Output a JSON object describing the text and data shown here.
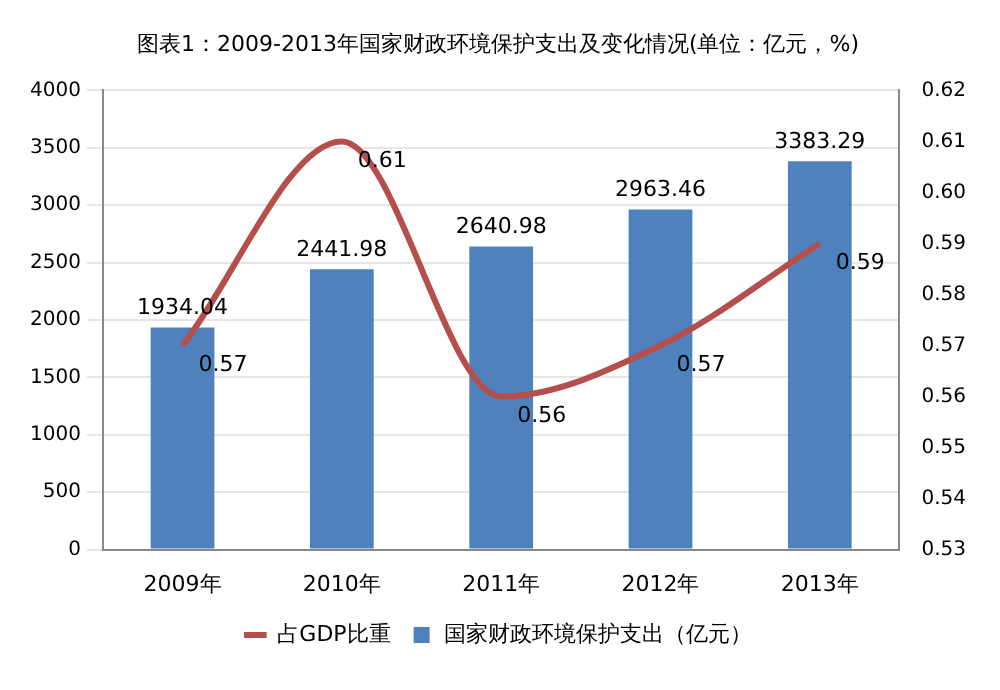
{
  "chart_data": {
    "type": "bar",
    "title": "图表1：2009-2013年国家财政环境保护支出及变化情况(单位：亿元，%)",
    "categories": [
      "2009年",
      "2010年",
      "2011年",
      "2012年",
      "2013年"
    ],
    "series": [
      {
        "name": "国家财政环境保护支出（亿元）",
        "color": "#4f81bd",
        "values": [
          1934.04,
          2441.98,
          2640.98,
          2963.46,
          3383.29
        ]
      },
      {
        "name": "占GDP比重",
        "type": "line",
        "axis": "y2",
        "color": "#b54f4c",
        "values": [
          0.57,
          0.61,
          0.56,
          0.57,
          0.59
        ]
      }
    ],
    "ylim": [
      0,
      4000
    ],
    "yticks": [
      0,
      500,
      1000,
      1500,
      2000,
      2500,
      3000,
      3500,
      4000
    ],
    "y2lim": [
      0.53,
      0.62
    ],
    "y2ticks": [
      0.53,
      0.54,
      0.55,
      0.56,
      0.57,
      0.58,
      0.59,
      {
        "value": 0.6,
        "label": "0.60"
      },
      0.61,
      0.62
    ],
    "data_labels": true,
    "grid": "y",
    "legend": "bottom"
  }
}
